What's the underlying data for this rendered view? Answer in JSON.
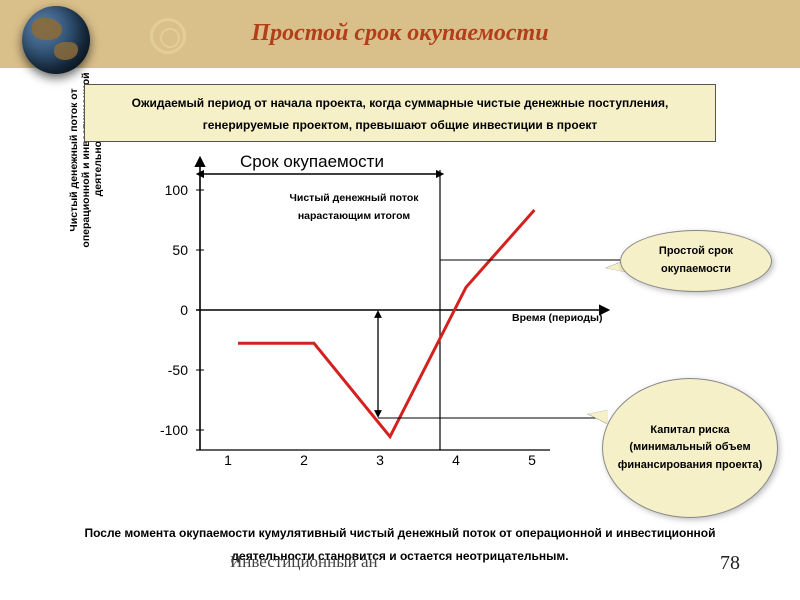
{
  "title": "Простой срок окупаемости",
  "definition": "Ожидаемый период от начала проекта, когда суммарные чистые денежные поступления, генерируемые проектом, превышают общие инвестиции в проект",
  "chart": {
    "type": "line",
    "srok_label": "Срок окупаемости",
    "cumulative_label": "Чистый денежный поток нарастающим итогом",
    "y_axis_label": "Чистый денежный поток от операционной и инвестиционной деятельности",
    "x_axis_label": "Время (периоды)",
    "y_ticks": [
      100,
      50,
      0,
      -50,
      -100
    ],
    "x_ticks": [
      1,
      2,
      3,
      4,
      5
    ],
    "ylim": [
      -100,
      110
    ],
    "xlim": [
      0.5,
      5.5
    ],
    "line_color": "#d4201e",
    "line_width": 3,
    "axis_color": "#000000",
    "background_color": "#ffffff",
    "payback_x": 3.85,
    "series": {
      "x": [
        1,
        2,
        3,
        4,
        4.9
      ],
      "y": [
        -20,
        -20,
        -90,
        22,
        80
      ]
    }
  },
  "callouts": {
    "simple": "Простой срок окупаемости",
    "risk": "Капитал риска (минимальный объем финансирования проекта)"
  },
  "footer": "После момента окупаемости кумулятивный чистый денежный поток от операционной и инвестиционной деятельности становится и остается неотрицательным.",
  "footer_sub": "Инвестиционный ан",
  "page": "78",
  "colors": {
    "header_band": "#d9bf8a",
    "title_color": "#b43d1a",
    "box_fill": "#f5f0c8",
    "box_border": "#555555"
  }
}
